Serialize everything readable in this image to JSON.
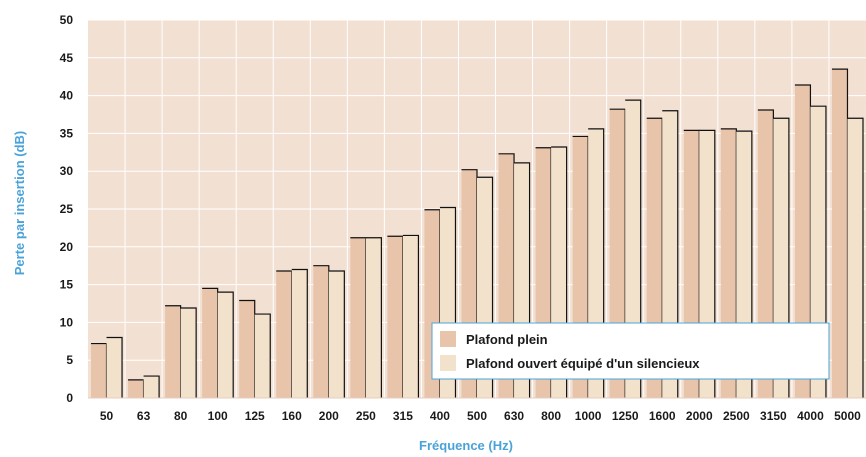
{
  "chart_data": {
    "type": "bar",
    "xlabel": "Fréquence (Hz)",
    "ylabel": "Perte par insertion (dB)",
    "ylim": [
      0,
      50
    ],
    "yticks": [
      0,
      5,
      10,
      15,
      20,
      25,
      30,
      35,
      40,
      45,
      50
    ],
    "grid": true,
    "legend_position": "bottom-right",
    "categories": [
      "50",
      "63",
      "80",
      "100",
      "125",
      "160",
      "200",
      "250",
      "315",
      "400",
      "500",
      "630",
      "800",
      "1000",
      "1250",
      "1600",
      "2000",
      "2500",
      "3150",
      "4000",
      "5000"
    ],
    "series": [
      {
        "name": "Plafond plein",
        "color": "#e8c4ab",
        "values": [
          7.2,
          2.4,
          12.2,
          14.5,
          12.9,
          16.8,
          17.5,
          21.2,
          21.4,
          24.9,
          30.2,
          32.3,
          33.1,
          34.6,
          38.2,
          37.0,
          35.4,
          35.6,
          38.1,
          41.4,
          43.5
        ]
      },
      {
        "name": "Plafond ouvert équipé d'un silencieux",
        "color": "#f2e2cc",
        "values": [
          8.0,
          2.9,
          11.9,
          14.0,
          11.1,
          17.0,
          16.8,
          21.2,
          21.5,
          25.2,
          29.2,
          31.1,
          33.2,
          35.6,
          39.4,
          38.0,
          35.4,
          35.3,
          37.0,
          38.6,
          37.0
        ]
      }
    ],
    "background_color": "#f2e0d3",
    "grid_color": "#ffffff",
    "axis_title_color": "#4aa3d8"
  }
}
